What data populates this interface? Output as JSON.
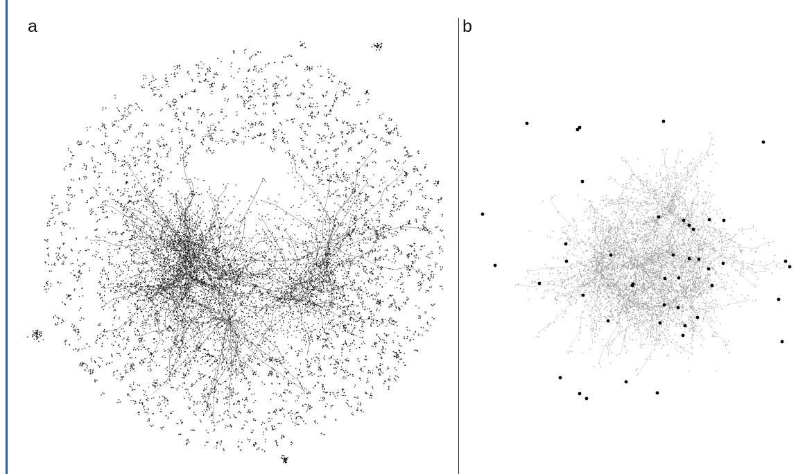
{
  "panels": [
    {
      "label": "a",
      "style": "dense-dark"
    },
    {
      "label": "b",
      "style": "light-with-highlighted-nodes"
    }
  ],
  "colors": {
    "left_rule": "#2a5aa8",
    "node_dark": "#1a1a1a",
    "node_light": "#9a9a9a",
    "edge_dark": "#555555",
    "edge_light": "#bdbdbd",
    "highlight_node": "#000000"
  }
}
